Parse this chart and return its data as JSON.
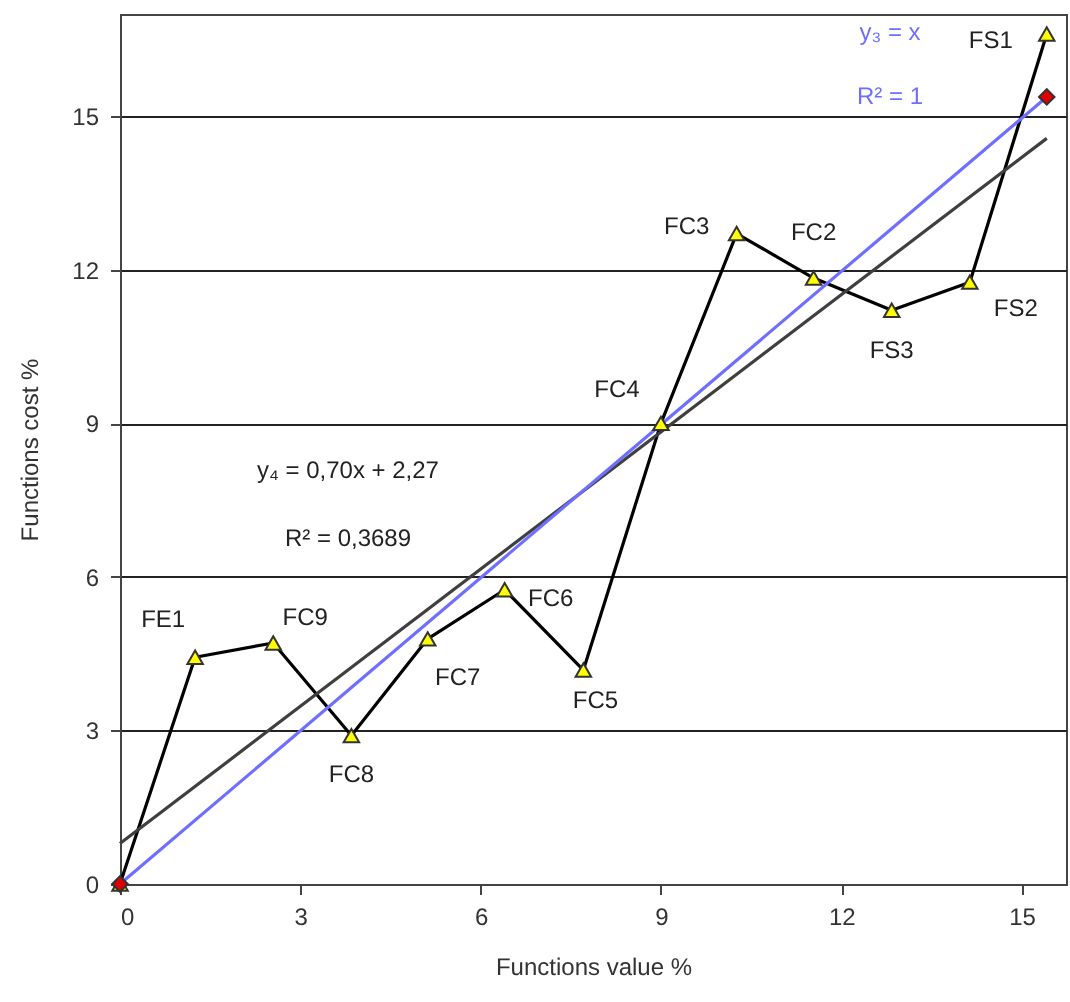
{
  "chart_data": {
    "type": "line",
    "xlabel": "Functions value %",
    "ylabel": "Functions cost %",
    "xlim": [
      0,
      15.74
    ],
    "ylim": [
      0,
      17
    ],
    "xticks": [
      0,
      3,
      6,
      9,
      12,
      15
    ],
    "yticks": [
      0,
      3,
      6,
      9,
      12,
      15
    ],
    "grid": "y",
    "series": [
      {
        "color": "#000000",
        "marker": "none",
        "line_style": "solid",
        "x": [
          0,
          1.25,
          2.55,
          3.85,
          5.12,
          6.4,
          7.71,
          9,
          10.26,
          11.54,
          12.84,
          14.14,
          15.42
        ],
        "values": [
          0,
          4.43,
          4.71,
          2.9,
          4.79,
          5.75,
          4.18,
          9,
          12.71,
          11.84,
          11.21,
          11.76,
          16.61
        ]
      },
      {
        "type": "line",
        "color": "#3f3f3f",
        "marker": "none",
        "line_style": "solid",
        "x": [
          0,
          15.42
        ],
        "values": [
          0.79,
          14.57
        ]
      },
      {
        "type": "line",
        "color": "#6f6fff",
        "marker": "none",
        "line_style": "solid",
        "x": [
          0,
          15.42
        ],
        "values": [
          0,
          15.38
        ]
      },
      {
        "type": "scatter",
        "color": "#ffff00",
        "marker": "triangle",
        "x": [
          0,
          1.25,
          2.55,
          3.85,
          5.12,
          6.4,
          7.71,
          9,
          10.26,
          11.54,
          12.84,
          14.14,
          15.42
        ],
        "values": [
          0,
          4.43,
          4.71,
          2.9,
          4.79,
          5.75,
          4.18,
          9,
          12.71,
          11.84,
          11.21,
          11.76,
          16.61
        ]
      },
      {
        "type": "scatter",
        "color": "#e00000",
        "marker": "diamond",
        "x": [
          0,
          15.42
        ],
        "values": [
          0,
          15.38
        ]
      }
    ],
    "annotations": [
      "y₄ = 0,70x + 2,27",
      "R² = 0,3689",
      "y₃ = x",
      "R² = 1",
      {
        "text": "FE1",
        "x": 1.25,
        "y": 4.43
      },
      {
        "text": "FC9",
        "x": 2.55,
        "y": 4.71
      },
      {
        "text": "FC8",
        "x": 3.85,
        "y": 2.9
      },
      {
        "text": "FC7",
        "x": 5.12,
        "y": 4.79
      },
      {
        "text": "FC6",
        "x": 6.4,
        "y": 5.75
      },
      {
        "text": "FC5",
        "x": 7.71,
        "y": 4.18
      },
      {
        "text": "FC4",
        "x": 9,
        "y": 9
      },
      {
        "text": "FC3",
        "x": 10.26,
        "y": 12.71
      },
      {
        "text": "FC2",
        "x": 11.54,
        "y": 11.84
      },
      {
        "text": "FS3",
        "x": 12.84,
        "y": 11.21
      },
      {
        "text": "FS2",
        "x": 14.14,
        "y": 11.76
      },
      {
        "text": "FS1",
        "x": 15.42,
        "y": 16.61
      }
    ]
  }
}
